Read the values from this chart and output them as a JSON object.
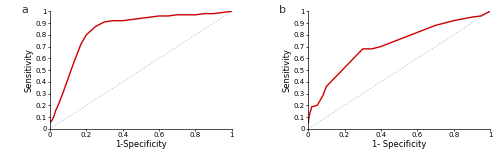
{
  "panel_a_label": "a",
  "panel_b_label": "b",
  "xlabel_a": "1-Specificity",
  "xlabel_b": "1- Specificity",
  "ylabel": "Sensitivity",
  "roc_color": "#cc0000",
  "diag_color": "#aaccdd",
  "roc_linewidth": 1.0,
  "diag_linewidth": 0.8,
  "roc_a_x": [
    0,
    0.005,
    0.01,
    0.02,
    0.03,
    0.05,
    0.07,
    0.1,
    0.13,
    0.17,
    0.2,
    0.25,
    0.3,
    0.35,
    0.4,
    0.45,
    0.5,
    0.55,
    0.6,
    0.65,
    0.7,
    0.75,
    0.8,
    0.85,
    0.9,
    0.95,
    1.0
  ],
  "roc_a_y": [
    0.05,
    0.06,
    0.07,
    0.1,
    0.15,
    0.22,
    0.3,
    0.43,
    0.56,
    0.72,
    0.8,
    0.87,
    0.91,
    0.92,
    0.92,
    0.93,
    0.94,
    0.95,
    0.96,
    0.96,
    0.97,
    0.97,
    0.97,
    0.98,
    0.98,
    0.99,
    1.0
  ],
  "roc_b_x": [
    0,
    0.005,
    0.01,
    0.015,
    0.02,
    0.03,
    0.05,
    0.08,
    0.1,
    0.15,
    0.2,
    0.25,
    0.3,
    0.35,
    0.4,
    0.5,
    0.6,
    0.7,
    0.8,
    0.9,
    0.95,
    1.0
  ],
  "roc_b_y": [
    0.05,
    0.1,
    0.14,
    0.16,
    0.19,
    0.19,
    0.2,
    0.28,
    0.36,
    0.44,
    0.52,
    0.6,
    0.68,
    0.68,
    0.7,
    0.76,
    0.82,
    0.88,
    0.92,
    0.95,
    0.96,
    1.0
  ],
  "tick_fontsize": 5.0,
  "label_fontsize": 6.0,
  "panel_label_fontsize": 8.0,
  "xticks": [
    0,
    0.2,
    0.4,
    0.6,
    0.8,
    1.0
  ],
  "xtick_labels_a": [
    "0",
    "0.2",
    "0.4",
    "0.6",
    "0.8",
    "1"
  ],
  "xtick_labels_b": [
    "0",
    "0.2",
    "0.4",
    "0.6",
    "0.8",
    "1"
  ],
  "yticks": [
    0,
    0.1,
    0.2,
    0.3,
    0.4,
    0.5,
    0.6,
    0.7,
    0.8,
    0.9,
    1.0
  ],
  "ytick_labels": [
    "0",
    "0.1",
    "0.2",
    "0.3",
    "0.4",
    "0.5",
    "0.6",
    "0.7",
    "0.8",
    "0.9",
    "1"
  ],
  "bg_color": "#ffffff"
}
